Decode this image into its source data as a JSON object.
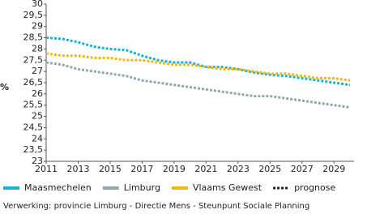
{
  "chart_data": {
    "type": "line",
    "y_label": "%",
    "x": [
      2011,
      2012,
      2013,
      2014,
      2015,
      2016,
      2017,
      2018,
      2019,
      2020,
      2021,
      2022,
      2023,
      2024,
      2025,
      2026,
      2027,
      2028,
      2029,
      2030
    ],
    "series": [
      {
        "name": "Maasmechelen",
        "color": "#1ab0d8",
        "values": [
          28.5,
          28.45,
          28.3,
          28.1,
          28.0,
          27.95,
          27.7,
          27.5,
          27.4,
          27.4,
          27.2,
          27.2,
          27.1,
          26.95,
          26.85,
          26.8,
          26.7,
          26.6,
          26.5,
          26.4
        ]
      },
      {
        "name": "Limburg",
        "color": "#8fa7b0",
        "values": [
          27.4,
          27.3,
          27.1,
          27.0,
          26.9,
          26.8,
          26.6,
          26.5,
          26.4,
          26.3,
          26.2,
          26.1,
          26.0,
          25.9,
          25.9,
          25.8,
          25.7,
          25.6,
          25.5,
          25.4
        ]
      },
      {
        "name": "Vlaams Gewest",
        "color": "#f0b90f",
        "values": [
          27.8,
          27.7,
          27.7,
          27.6,
          27.6,
          27.5,
          27.5,
          27.4,
          27.3,
          27.3,
          27.2,
          27.1,
          27.1,
          27.0,
          26.9,
          26.9,
          26.8,
          26.7,
          26.7,
          26.6
        ]
      }
    ],
    "prognose_label": "prognose",
    "line_style": "dotted",
    "xlim": [
      2011,
      2030
    ],
    "xticks": [
      2011,
      2013,
      2015,
      2017,
      2019,
      2021,
      2023,
      2025,
      2027,
      2029
    ],
    "ylim": [
      23,
      30
    ],
    "yticks": [
      23,
      {
        "value": 23.5,
        "label": "23,5"
      },
      24,
      {
        "value": 24.5,
        "label": "24,5"
      },
      25,
      {
        "value": 25.5,
        "label": "25,5"
      },
      26,
      {
        "value": 26.5,
        "label": "26,5"
      },
      27,
      {
        "value": 27.5,
        "label": "27,5"
      },
      28,
      {
        "value": 28.5,
        "label": "28,5"
      },
      29,
      {
        "value": 29.5,
        "label": "29,5"
      },
      30
    ],
    "grid": false,
    "source": "Verwerking: provincie Limburg - Directie Mens - Steunpunt Sociale Planning"
  }
}
